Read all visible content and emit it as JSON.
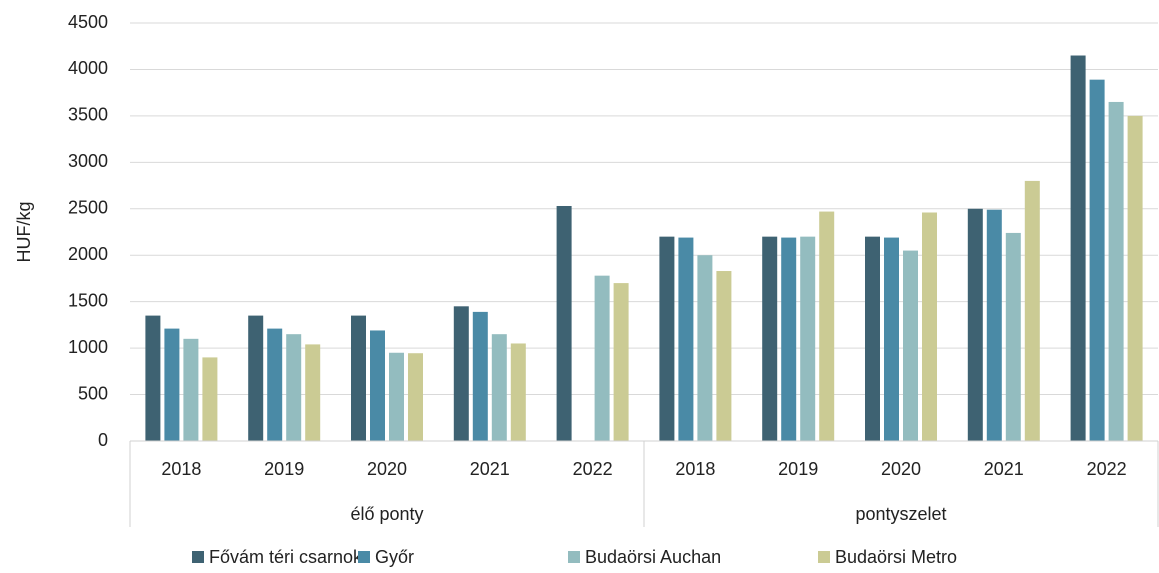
{
  "chart_data": {
    "type": "bar",
    "ylabel": "HUF/kg",
    "groups": [
      {
        "name": "élő ponty",
        "categories": [
          "2018",
          "2019",
          "2020",
          "2021",
          "2022"
        ]
      },
      {
        "name": "pontyszelet",
        "categories": [
          "2018",
          "2019",
          "2020",
          "2021",
          "2022"
        ]
      }
    ],
    "series": [
      {
        "name": "Fővám téri csarnok",
        "color": "#3e6272",
        "values": [
          1350,
          1350,
          1350,
          1450,
          2530,
          2200,
          2200,
          2200,
          2500,
          4150
        ]
      },
      {
        "name": "Győr",
        "color": "#4a8aa6",
        "values": [
          1210,
          1210,
          1190,
          1390,
          null,
          2190,
          2190,
          2190,
          2490,
          3890
        ]
      },
      {
        "name": "Budaörsi Auchan",
        "color": "#93bcbf",
        "values": [
          1100,
          1150,
          950,
          1150,
          1780,
          2000,
          2200,
          2050,
          2240,
          3650
        ]
      },
      {
        "name": "Budaörsi Metro",
        "color": "#cbcb94",
        "values": [
          900,
          1040,
          945,
          1050,
          1700,
          1830,
          2470,
          2460,
          2800,
          3500
        ]
      }
    ],
    "ylim": [
      0,
      4500
    ],
    "yticks": [
      0,
      500,
      1000,
      1500,
      2000,
      2500,
      3000,
      3500,
      4000,
      4500
    ],
    "grid": true,
    "legend": "bottom"
  }
}
